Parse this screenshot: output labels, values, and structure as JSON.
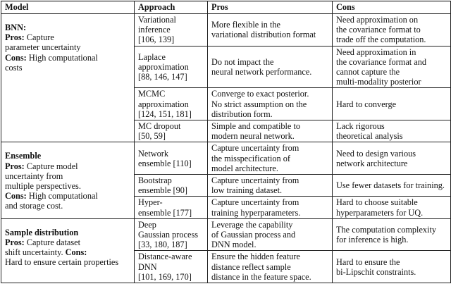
{
  "header": [
    "Model",
    "Approach",
    "Pros",
    "Cons"
  ],
  "groups": [
    {
      "model": [
        [
          {
            "text": "BNN:",
            "bold": true
          }
        ],
        [
          {
            "text": "Pros:",
            "bold": true
          },
          {
            "text": "Capture",
            "bold": false
          }
        ],
        [
          {
            "text": "parameter uncertainty",
            "bold": false
          }
        ],
        [
          {
            "text": "Cons:",
            "bold": true
          },
          {
            "text": "High computational",
            "bold": false
          }
        ],
        [
          {
            "text": "costs",
            "bold": false
          }
        ]
      ],
      "rows": [
        {
          "approach": [
            "Variational",
            "inference",
            "[106, 139]"
          ],
          "pros": [
            "More flexible in the",
            "variational distribution format"
          ],
          "cons": [
            "Need approximation on",
            "the covariance format to",
            "trade off the computation."
          ]
        },
        {
          "approach": [
            "Laplace",
            "approximation",
            "[88, 146, 147]"
          ],
          "pros": [
            "Do not impact the",
            "neural network performance."
          ],
          "cons": [
            "Need approximation in",
            "the covariance format and",
            "cannot capture the",
            "multi-modality posterior"
          ]
        },
        {
          "approach": [
            "MCMC",
            "approximation",
            "[124, 151, 181]"
          ],
          "pros": [
            "Converge to exact posterior.",
            "No strict assumption on the",
            "distribution form."
          ],
          "cons": [
            "Hard to converge"
          ]
        },
        {
          "approach": [
            "MC dropout",
            "[50, 59]"
          ],
          "pros": [
            "Simple and compatible to",
            "modern neural network."
          ],
          "cons": [
            "Lack rigorous",
            "theoretical analysis"
          ]
        }
      ]
    },
    {
      "model": [
        [
          {
            "text": "Ensemble",
            "bold": true
          }
        ],
        [
          {
            "text": "Pros:",
            "bold": true
          },
          {
            "text": "Capture model",
            "bold": false
          }
        ],
        [
          {
            "text": "uncertainty from",
            "bold": false
          }
        ],
        [
          {
            "text": "multiple perspectives.",
            "bold": false
          }
        ],
        [
          {
            "text": "Cons:",
            "bold": true
          },
          {
            "text": "High computational",
            "bold": false
          }
        ],
        [
          {
            "text": "and storage cost.",
            "bold": false
          }
        ]
      ],
      "rows": [
        {
          "approach": [
            "Network",
            "ensemble [110]"
          ],
          "pros": [
            "Capture uncertainty from",
            "the misspecification of",
            "model architecture."
          ],
          "cons": [
            "Need to design various",
            "network architecture"
          ]
        },
        {
          "approach": [
            "Bootstrap",
            "ensemble [90]"
          ],
          "pros": [
            "Capture uncertainty from",
            "low training dataset."
          ],
          "cons": [
            "Use fewer datasets for training."
          ]
        },
        {
          "approach": [
            "Hyper-",
            "ensemble [177]"
          ],
          "pros": [
            "Capture uncertainty from",
            "training hyperparameters."
          ],
          "cons": [
            "Hard to choose suitable",
            "hyperparameters for UQ."
          ]
        }
      ]
    },
    {
      "model": [
        [
          {
            "text": "Sample distribution",
            "bold": true
          }
        ],
        [
          {
            "text": "Pros:",
            "bold": true
          },
          {
            "text": "Capture dataset",
            "bold": false
          }
        ],
        [
          {
            "text": "shift uncertainty.",
            "bold": false
          },
          {
            "text": "Cons:",
            "bold": true
          }
        ],
        [
          {
            "text": "Hard to ensure certain properties",
            "bold": false
          }
        ]
      ],
      "rows": [
        {
          "approach": [
            "Deep",
            "Gaussian process",
            "[33, 180, 187]"
          ],
          "pros": [
            "Leverage the capability",
            "of Gaussian process and",
            "DNN model."
          ],
          "cons": [
            "The computation complexity",
            "for inference is high."
          ]
        },
        {
          "approach": [
            "Distance-aware",
            "DNN",
            "[101, 169, 170]"
          ],
          "pros": [
            "Ensure the hidden feature",
            "distance reflect sample",
            "distance in the feature space."
          ],
          "cons": [
            "Hard to ensure the",
            "bi-Lipschit constraints."
          ]
        }
      ]
    }
  ]
}
